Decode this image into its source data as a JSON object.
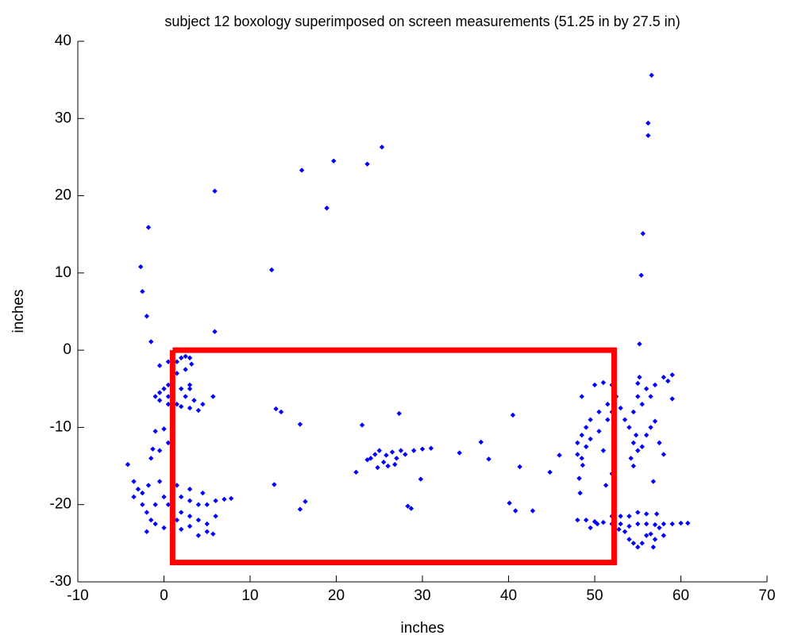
{
  "chart_data": {
    "type": "scatter",
    "title": "subject 12 boxology superimposed on screen measurements (51.25 in by 27.5 in)",
    "x_label": "inches",
    "y_label": "inches",
    "xlim": [
      -10,
      70
    ],
    "ylim": [
      -30,
      40
    ],
    "xticks": [
      -10,
      0,
      10,
      20,
      30,
      40,
      50,
      60,
      70
    ],
    "yticks": [
      -30,
      -20,
      -10,
      0,
      10,
      20,
      30,
      40
    ],
    "grid": false,
    "series": [
      {
        "type": "scatter",
        "color": "#0000ff",
        "x": [
          56.6,
          56.2,
          56.2,
          55.6,
          55.4,
          55.2,
          25.3,
          23.6,
          19.7,
          16,
          18.9,
          12.5,
          5.9,
          5.9,
          -1.8,
          -2.7,
          -2.5,
          -2,
          -1.5,
          13,
          13.6,
          15.8,
          12.8,
          16.4,
          15.8,
          22.3,
          23,
          27.3,
          28.3,
          28.7,
          29.8,
          34.3,
          36.8,
          37.7,
          40.5,
          40.1,
          40.8,
          41.3,
          42.8,
          44.8,
          45.9,
          48.2,
          48.6,
          24,
          24.5,
          25,
          25.5,
          26,
          26.5,
          27,
          27.5,
          28,
          29,
          30,
          31,
          24.8,
          25.8,
          26.8,
          23.6,
          0.5,
          1,
          1.5,
          2,
          2.5,
          3,
          3.2,
          2.5,
          1.5,
          1,
          0.5,
          0,
          -0.5,
          -1,
          -0.5,
          0.5,
          1,
          2,
          3,
          3,
          2.5,
          1.5,
          2,
          3,
          4,
          4.5,
          3.5,
          0.5,
          5.7,
          -0.5,
          0,
          -1,
          -1.3,
          -1.5,
          -0.5,
          0.5,
          -4.2,
          -3.5,
          -3,
          -3.5,
          -2.5,
          -2,
          -1.5,
          -1,
          0,
          -2,
          1,
          2,
          3,
          0.5,
          1,
          2,
          3,
          4,
          5,
          6,
          7,
          7.8,
          2,
          3,
          4,
          5,
          6,
          4.5,
          3,
          1.5,
          -1.8,
          -0.5,
          4,
          5,
          -2.5,
          0,
          1,
          -1,
          5.7,
          1.5,
          50,
          51,
          52,
          52.5,
          51.5,
          50.5,
          49.5,
          49,
          48.5,
          48,
          48,
          48.5,
          49,
          49.5,
          50.5,
          51.5,
          52,
          48.5,
          51,
          53,
          53.5,
          54,
          54.5,
          55,
          56,
          57,
          58,
          59,
          58.5,
          56.5,
          55.5,
          54.8,
          54.5,
          54.2,
          54.5,
          55,
          55.5,
          56,
          56.5,
          57,
          57.5,
          58,
          56.8,
          59,
          55,
          50.3,
          55.2,
          48,
          49,
          50,
          51,
          52,
          53,
          54,
          55,
          56,
          57,
          58,
          59,
          60,
          60.8,
          53.5,
          54,
          54.5,
          55,
          55.5,
          56,
          56.5,
          57,
          56.8,
          57.5,
          58,
          53,
          54,
          55,
          56,
          52.8,
          52,
          49.5,
          48.3,
          51.3,
          52,
          57.2
        ],
        "values": [
          35.6,
          29.4,
          27.8,
          15.1,
          9.7,
          0.8,
          26.3,
          24.1,
          24.5,
          23.3,
          18.4,
          10.4,
          20.6,
          2.4,
          15.9,
          10.8,
          7.6,
          4.4,
          1.1,
          -7.6,
          -8,
          -9.6,
          -17.4,
          -19.6,
          -20.6,
          -15.8,
          -9.7,
          -8.2,
          -20.2,
          -20.5,
          -16.7,
          -13.3,
          -11.9,
          -14.1,
          -8.4,
          -19.8,
          -20.8,
          -15.1,
          -20.8,
          -15.8,
          -13.6,
          -16.6,
          -14.9,
          -14,
          -13.5,
          -13,
          -14.5,
          -15,
          -13.2,
          -14,
          -13,
          -13.5,
          -13,
          -12.8,
          -12.7,
          -15.2,
          -13.6,
          -14.8,
          -14.2,
          -1.5,
          -2,
          -1.5,
          -1,
          -0.8,
          -1,
          -1.8,
          -2.5,
          -3,
          -3.5,
          -4.5,
          -5,
          -5.5,
          -6,
          -6.5,
          -6,
          -5.5,
          -5,
          -5,
          -4.5,
          -6,
          -7,
          -7.3,
          -7.5,
          -7.8,
          -7,
          -6.5,
          -7,
          -6,
          -2,
          -10.2,
          -10.5,
          -12.8,
          -14,
          -13,
          -12,
          -14.8,
          -17,
          -18,
          -19,
          -20,
          -21,
          -22,
          -22.5,
          -23,
          -23.5,
          -23.5,
          -23.2,
          -22.8,
          -20,
          -19.5,
          -19,
          -19.5,
          -20,
          -20,
          -19.5,
          -19.3,
          -19.2,
          -21,
          -21.5,
          -22,
          -22.5,
          -21.5,
          -18.5,
          -18,
          -17.5,
          -17.5,
          -17,
          -24,
          -23.5,
          -18.5,
          -19,
          -21,
          -20,
          -23.8,
          -22,
          -4.5,
          -4.2,
          -4.5,
          -6,
          -7,
          -8,
          -9,
          -10,
          -11,
          -12,
          -13.5,
          -14,
          -12.5,
          -11.5,
          -10.5,
          -9,
          -8,
          -6,
          -13,
          -7.5,
          -9,
          -10,
          -8,
          -6,
          -5,
          -4.5,
          -3.5,
          -3.2,
          -4,
          -6,
          -7,
          -11,
          -12,
          -14,
          -15,
          -13,
          -12.5,
          -11,
          -10,
          -9.2,
          -12,
          -13.5,
          -17,
          -6.3,
          -4.3,
          -22.5,
          -3.5,
          -22,
          -22,
          -22.2,
          -22.3,
          -22.5,
          -22.5,
          -22.8,
          -22.5,
          -22.5,
          -22.6,
          -22.5,
          -22.5,
          -22.4,
          -22.4,
          -23.5,
          -24.5,
          -25,
          -25.5,
          -25,
          -24,
          -23.8,
          -24.5,
          -25.5,
          -23,
          -24,
          -21.5,
          -21.5,
          -21,
          -21.2,
          -23.2,
          -21.5,
          -23,
          -18.5,
          -17.5,
          -16,
          -21.2
        ]
      },
      {
        "type": "line",
        "color": "#ff0000",
        "x": [
          1,
          52.25,
          52.25,
          1,
          1
        ],
        "values": [
          0,
          0,
          -27.5,
          -27.5,
          0
        ]
      }
    ]
  }
}
